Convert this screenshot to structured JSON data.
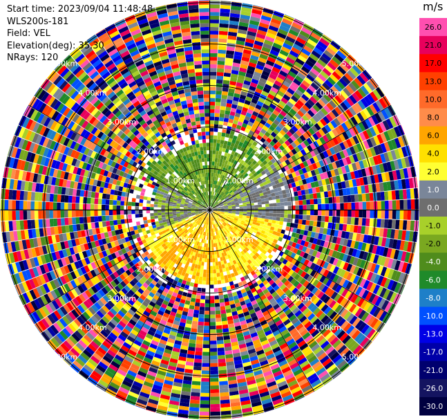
{
  "header": {
    "start_time": "Start time: 2023/09/04 11:48:48",
    "instrument": "WLS200s-181",
    "field": "Field: VEL",
    "elevation": "Elevation(deg): 35.30",
    "nrays": "NRays: 120"
  },
  "colorbar": {
    "unit": "m/s",
    "bins": [
      {
        "label": "26.0",
        "color": "#ff4fb0"
      },
      {
        "label": "21.0",
        "color": "#e8005c"
      },
      {
        "label": "17.0",
        "color": "#ff0000"
      },
      {
        "label": "13.0",
        "color": "#ff4000"
      },
      {
        "label": "10.0",
        "color": "#ff6a2a"
      },
      {
        "label": "8.0",
        "color": "#ff8c4a"
      },
      {
        "label": "6.0",
        "color": "#ffa500"
      },
      {
        "label": "4.0",
        "color": "#ffe000"
      },
      {
        "label": "2.0",
        "color": "#ffff33"
      },
      {
        "label": "1.0",
        "color": "#7a8699"
      },
      {
        "label": "0.0",
        "color": "#6e6e6e"
      },
      {
        "label": "-1.0",
        "color": "#a8d02a"
      },
      {
        "label": "-2.0",
        "color": "#7aa820"
      },
      {
        "label": "-4.0",
        "color": "#4f8c1c"
      },
      {
        "label": "-6.0",
        "color": "#1f8a2a"
      },
      {
        "label": "-8.0",
        "color": "#1e7fc8"
      },
      {
        "label": "-10.0",
        "color": "#0050ff"
      },
      {
        "label": "-13.0",
        "color": "#0000e6"
      },
      {
        "label": "-17.0",
        "color": "#0000a8"
      },
      {
        "label": "-21.0",
        "color": "#00006e"
      },
      {
        "label": "-26.0",
        "color": "#141460"
      },
      {
        "label": "-30.0",
        "color": "#000040"
      }
    ]
  },
  "chart_data": {
    "type": "heatmap",
    "projection": "polar",
    "field": "VEL",
    "units": "m/s",
    "value_range": [
      -30.0,
      30.0
    ],
    "rings_km": [
      1.0,
      2.0,
      3.0,
      4.0,
      5.0
    ],
    "ring_labels": [
      "1.00km",
      "2.00km",
      "3.00km",
      "4.00km",
      "5.00km"
    ],
    "spokes_deg": [
      0,
      30,
      60,
      90,
      120,
      150,
      180,
      210,
      240,
      270,
      300,
      330
    ],
    "nrays": 120,
    "elevation_deg": 35.3,
    "regions": [
      {
        "sector": "north",
        "range_km": [
          0.0,
          1.8
        ],
        "dominant_values": [
          -1.0,
          -2.0,
          -4.0,
          -6.0
        ]
      },
      {
        "sector": "east",
        "range_km": [
          0.0,
          2.0
        ],
        "dominant_values": [
          0.0,
          1.0
        ]
      },
      {
        "sector": "south",
        "range_km": [
          0.0,
          1.8
        ],
        "dominant_values": [
          2.0,
          4.0,
          6.0
        ]
      },
      {
        "sector": "west",
        "range_km": [
          0.0,
          1.4
        ],
        "dominant_values": [
          0.0,
          -1.0
        ]
      },
      {
        "sector": "all",
        "range_km": [
          2.0,
          5.2
        ],
        "dominant_values": "noise"
      }
    ]
  }
}
